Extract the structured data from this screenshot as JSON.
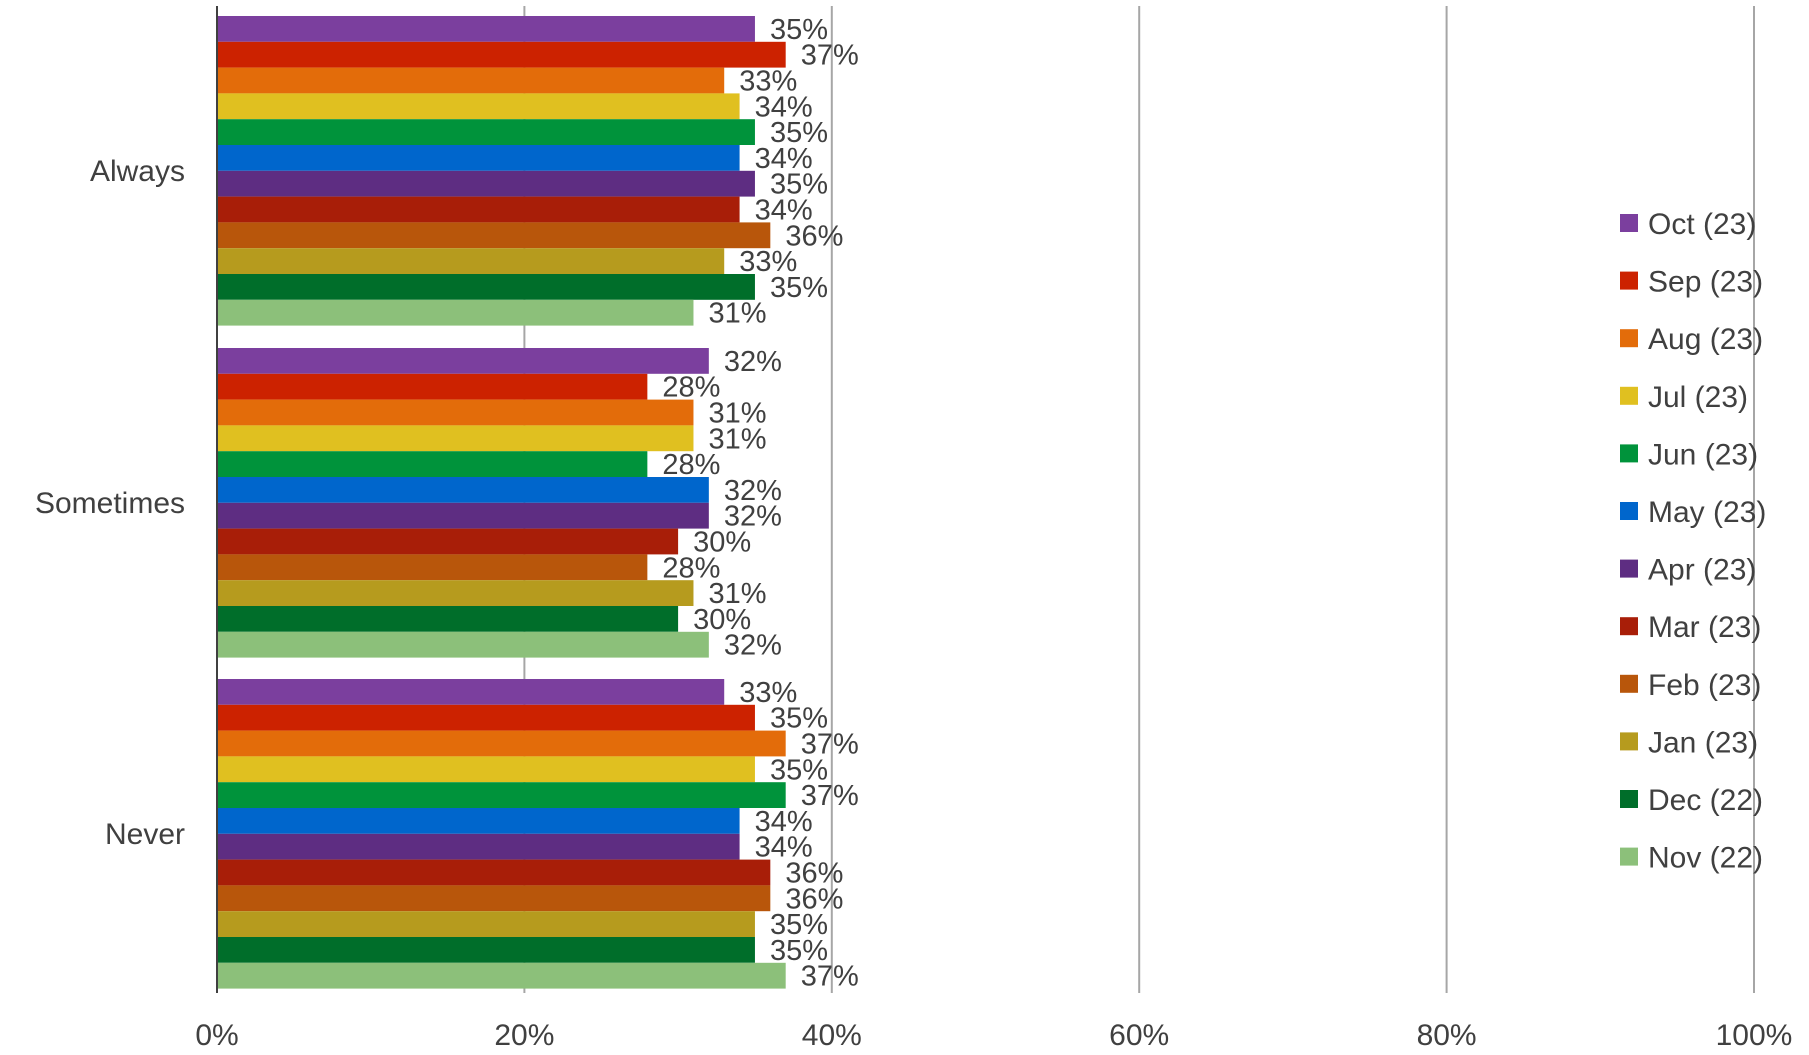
{
  "chart_data": {
    "type": "bar",
    "orientation": "horizontal",
    "categories": [
      "Always",
      "Sometimes",
      "Never"
    ],
    "xlim": [
      0,
      100
    ],
    "x_ticks": [
      "0%",
      "20%",
      "40%",
      "60%",
      "80%",
      "100%"
    ],
    "grid": "vertical",
    "legend_position": "right",
    "series": [
      {
        "name": "Oct (23)",
        "color": "#7B3F9E",
        "values": [
          35,
          32,
          33
        ],
        "labels": [
          "35%",
          "32%",
          "33%"
        ]
      },
      {
        "name": "Sep (23)",
        "color": "#CC2200",
        "values": [
          37,
          28,
          35
        ],
        "labels": [
          "37%",
          "28%",
          "35%"
        ]
      },
      {
        "name": "Aug (23)",
        "color": "#E36C0A",
        "values": [
          33,
          31,
          37
        ],
        "labels": [
          "33%",
          "31%",
          "37%"
        ]
      },
      {
        "name": "Jul (23)",
        "color": "#E0C020",
        "values": [
          34,
          31,
          35
        ],
        "labels": [
          "34%",
          "31%",
          "35%"
        ]
      },
      {
        "name": "Jun (23)",
        "color": "#00933B",
        "values": [
          35,
          28,
          37
        ],
        "labels": [
          "35%",
          "28%",
          "37%"
        ]
      },
      {
        "name": "May (23)",
        "color": "#0066CC",
        "values": [
          34,
          32,
          34
        ],
        "labels": [
          "34%",
          "32%",
          "34%"
        ]
      },
      {
        "name": "Apr (23)",
        "color": "#5E2D82",
        "values": [
          35,
          32,
          34
        ],
        "labels": [
          "35%",
          "32%",
          "34%"
        ]
      },
      {
        "name": "Mar (23)",
        "color": "#A81E08",
        "values": [
          34,
          30,
          36
        ],
        "labels": [
          "34%",
          "30%",
          "36%"
        ]
      },
      {
        "name": "Feb (23)",
        "color": "#B8560B",
        "values": [
          36,
          28,
          36
        ],
        "labels": [
          "36%",
          "28%",
          "36%"
        ]
      },
      {
        "name": "Jan (23)",
        "color": "#B69B1E",
        "values": [
          33,
          31,
          35
        ],
        "labels": [
          "33%",
          "31%",
          "35%"
        ]
      },
      {
        "name": "Dec (22)",
        "color": "#006E2A",
        "values": [
          35,
          30,
          35
        ],
        "labels": [
          "35%",
          "30%",
          "35%"
        ]
      },
      {
        "name": "Nov (22)",
        "color": "#8CC07A",
        "values": [
          31,
          32,
          37
        ],
        "labels": [
          "31%",
          "32%",
          "37%"
        ]
      }
    ]
  }
}
